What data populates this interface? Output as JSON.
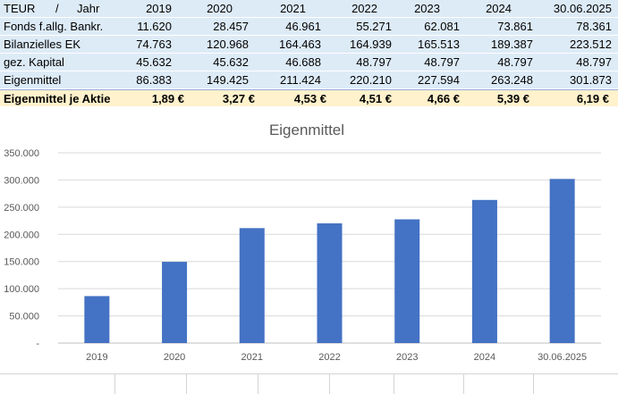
{
  "table": {
    "header_unit": "TEUR",
    "header_sep": "/",
    "header_year": "Jahr",
    "columns": [
      "2019",
      "2020",
      "2021",
      "2022",
      "2023",
      "2024",
      "30.06.2025"
    ],
    "rows": [
      {
        "label": "Fonds f.allg. Bankr.",
        "values": [
          "11.620",
          "28.457",
          "46.961",
          "55.271",
          "62.081",
          "73.861",
          "78.361"
        ]
      },
      {
        "label": "Bilanzielles EK",
        "values": [
          "74.763",
          "120.968",
          "164.463",
          "164.939",
          "165.513",
          "189.387",
          "223.512"
        ]
      },
      {
        "label": "gez. Kapital",
        "values": [
          "45.632",
          "45.632",
          "46.688",
          "48.797",
          "48.797",
          "48.797",
          "48.797"
        ]
      },
      {
        "label": "Eigenmittel",
        "values": [
          "86.383",
          "149.425",
          "211.424",
          "220.210",
          "227.594",
          "263.248",
          "301.873"
        ]
      }
    ],
    "summary": {
      "label": "Eigenmittel je Aktie",
      "values": [
        "1,89 €",
        "3,27 €",
        "4,53 €",
        "4,51 €",
        "4,66 €",
        "5,39 €",
        "6,19 €"
      ]
    }
  },
  "chart_data": {
    "type": "bar",
    "title": "Eigenmittel",
    "categories": [
      "2019",
      "2020",
      "2021",
      "2022",
      "2023",
      "2024",
      "30.06.2025"
    ],
    "values": [
      86383,
      149425,
      211424,
      220210,
      227594,
      263248,
      301873
    ],
    "ylim": [
      0,
      350000
    ],
    "yticks": [
      0,
      50000,
      100000,
      150000,
      200000,
      250000,
      300000,
      350000
    ],
    "ytick_labels": [
      "-",
      "50.000",
      "100.000",
      "150.000",
      "200.000",
      "250.000",
      "300.000",
      "350.000"
    ],
    "grid": true,
    "bar_color": "#4472c4"
  }
}
